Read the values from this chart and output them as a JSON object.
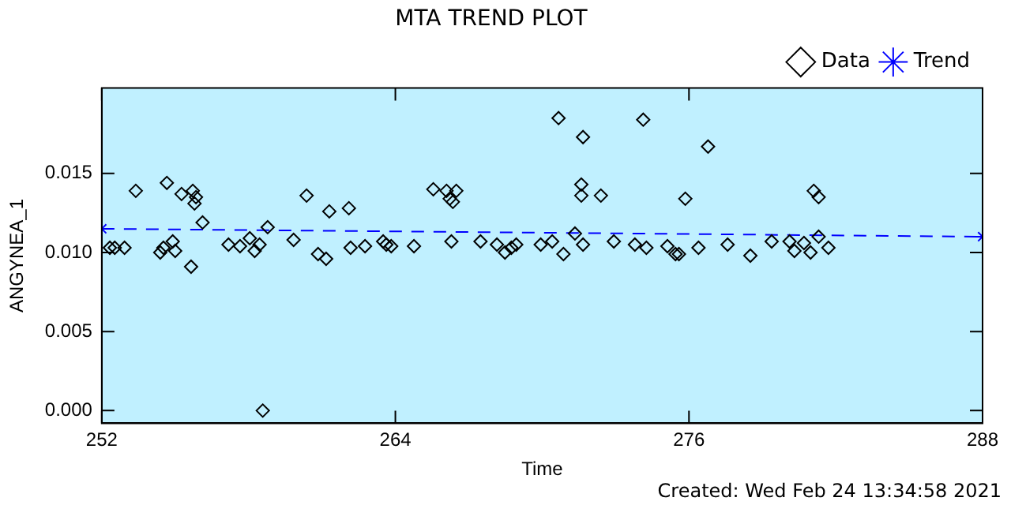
{
  "chart_data": {
    "type": "scatter",
    "title": "MTA TREND PLOT",
    "xlabel": "Time",
    "ylabel": "ANGYNEA_1",
    "annotations": [
      "Created: Wed Feb 24 13:34:58 2021"
    ],
    "xlim": [
      252,
      288
    ],
    "xticks": [
      252,
      264,
      276,
      288
    ],
    "ylim": [
      -0.0008,
      0.0204
    ],
    "yticks": [
      {
        "value": 0,
        "label": "0.000"
      },
      {
        "value": 0.005,
        "label": "0.005"
      },
      {
        "value": 0.01,
        "label": "0.010"
      },
      {
        "value": 0.015,
        "label": "0.015"
      }
    ],
    "grid": false,
    "legend": "top right",
    "marker": "diamond",
    "series": [
      {
        "name": "Data",
        "color": "#000000",
        "x": [
          252.33,
          252.53,
          252.93,
          253.39,
          254.66,
          255.26,
          255.72,
          255.85,
          255.79,
          256.12,
          254.39,
          254.52,
          254.9,
          255.0,
          255.65,
          257.18,
          257.65,
          258.05,
          258.25,
          258.45,
          258.58,
          258.78,
          259.84,
          260.37,
          260.84,
          261.17,
          261.3,
          262.1,
          262.17,
          262.76,
          263.5,
          263.63,
          263.83,
          264.76,
          265.55,
          266.09,
          266.49,
          266.22,
          266.35,
          266.29,
          267.48,
          268.15,
          268.48,
          268.74,
          268.94,
          269.94,
          270.41,
          270.67,
          270.87,
          271.34,
          271.6,
          271.6,
          271.67,
          271.67,
          272.4,
          272.93,
          273.79,
          274.13,
          274.26,
          275.12,
          275.45,
          275.85,
          275.59,
          276.39,
          276.78,
          277.58,
          278.51,
          279.38,
          280.11,
          280.31,
          280.7,
          280.97,
          281.1,
          281.3,
          281.3,
          281.7
        ],
        "values": [
          0.0103,
          0.0103,
          0.0103,
          0.0139,
          0.0144,
          0.0137,
          0.0139,
          0.0135,
          0.0131,
          0.0119,
          0.01,
          0.0103,
          0.0107,
          0.0101,
          0.0091,
          0.0105,
          0.0104,
          0.0109,
          0.0101,
          0.0105,
          0,
          0.0116,
          0.0108,
          0.0136,
          0.0099,
          0.0096,
          0.0126,
          0.0128,
          0.0103,
          0.0104,
          0.0107,
          0.0105,
          0.0104,
          0.0104,
          0.014,
          0.0139,
          0.0139,
          0.0134,
          0.0132,
          0.0107,
          0.0107,
          0.0105,
          0.01,
          0.0103,
          0.0105,
          0.0105,
          0.0107,
          0.0185,
          0.0099,
          0.0112,
          0.0143,
          0.0136,
          0.0173,
          0.0105,
          0.0136,
          0.0107,
          0.0105,
          0.0184,
          0.0103,
          0.0104,
          0.0099,
          0.0134,
          0.0099,
          0.0103,
          0.0167,
          0.0105,
          0.0098,
          0.0107,
          0.0107,
          0.0101,
          0.0106,
          0.01,
          0.0139,
          0.0135,
          0.011,
          0.0103
        ]
      },
      {
        "name": "Trend",
        "type": "line",
        "color": "#0000ff",
        "marker": "cross",
        "line_style": "dashed",
        "x": [
          252,
          288
        ],
        "values": [
          0.0115,
          0.011
        ]
      }
    ]
  }
}
